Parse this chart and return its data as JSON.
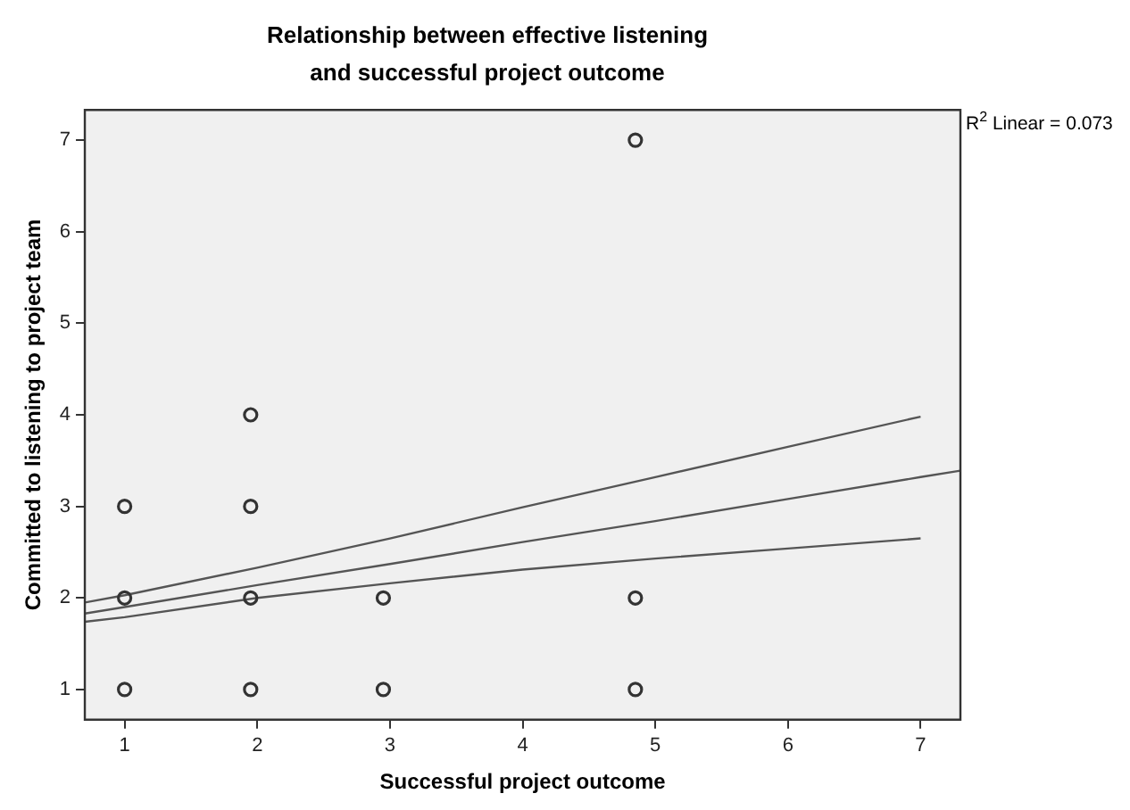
{
  "chart_data": {
    "type": "scatter",
    "title": "Relationship between effective listening\nand successful project outcome",
    "xlabel": "Successful project outcome",
    "ylabel": "Committed to listening to project team",
    "xlim": [
      0.7,
      7.3
    ],
    "xticks": [
      1,
      2,
      3,
      4,
      5,
      6,
      7
    ],
    "ylim": [
      0.67,
      7.33
    ],
    "yticks": [
      1,
      2,
      3,
      4,
      5,
      6,
      7
    ],
    "grid": false,
    "legend": false,
    "marker": "circle",
    "annotations": [
      "R$^{2}$ Linear = 0.073"
    ],
    "series": [
      {
        "type": "scatter",
        "color": "#333333",
        "x": [
          1,
          1,
          1,
          1.95,
          1.95,
          1.95,
          1.95,
          2.95,
          2.95,
          4.85,
          4.85,
          4.85
        ],
        "values": [
          1,
          2,
          3,
          1,
          2,
          3,
          4,
          1,
          2,
          1,
          2,
          7
        ]
      },
      {
        "type": "line",
        "color": "#555555",
        "marker": "none",
        "line_style": "solid",
        "x": [
          0.7,
          1,
          2,
          3,
          4,
          5,
          6,
          7,
          7.3
        ],
        "values": [
          1.83,
          1.9,
          2.14,
          2.37,
          2.61,
          2.84,
          3.08,
          3.32,
          3.39
        ]
      },
      {
        "type": "line",
        "color": "#555555",
        "marker": "none",
        "line_style": "solid",
        "x": [
          0.7,
          1,
          2,
          3,
          4,
          5,
          6,
          7
        ],
        "values": [
          1.74,
          1.79,
          2.0,
          2.16,
          2.31,
          2.43,
          2.54,
          2.65
        ]
      },
      {
        "type": "line",
        "color": "#555555",
        "marker": "none",
        "line_style": "solid",
        "x": [
          0.7,
          1,
          2,
          3,
          4,
          5,
          6,
          7
        ],
        "values": [
          1.95,
          2.03,
          2.33,
          2.65,
          2.99,
          3.32,
          3.65,
          3.98
        ]
      }
    ]
  }
}
